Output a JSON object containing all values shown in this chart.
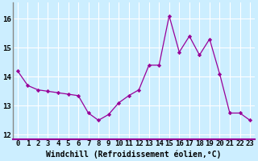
{
  "x": [
    0,
    1,
    2,
    3,
    4,
    5,
    6,
    7,
    8,
    9,
    10,
    11,
    12,
    13,
    14,
    15,
    16,
    17,
    18,
    19,
    20,
    21,
    22,
    23
  ],
  "y": [
    14.2,
    13.7,
    13.55,
    13.5,
    13.45,
    13.4,
    13.35,
    12.75,
    12.5,
    12.7,
    13.1,
    13.35,
    13.55,
    14.4,
    14.4,
    16.1,
    14.85,
    15.4,
    14.75,
    15.3,
    14.1,
    12.75,
    12.75,
    12.5
  ],
  "line_color": "#990099",
  "marker": "D",
  "marker_size": 2.2,
  "bg_color": "#cceeff",
  "grid_color": "#ffffff",
  "xlabel": "Windchill (Refroidissement éolien,°C)",
  "xlabel_fontsize": 7.0,
  "xtick_labels": [
    "0",
    "1",
    "2",
    "3",
    "4",
    "5",
    "6",
    "7",
    "8",
    "9",
    "10",
    "11",
    "12",
    "13",
    "14",
    "15",
    "16",
    "17",
    "18",
    "19",
    "20",
    "21",
    "22",
    "23"
  ],
  "ytick_labels": [
    "12",
    "13",
    "14",
    "15",
    "16"
  ],
  "yticks": [
    12,
    13,
    14,
    15,
    16
  ],
  "ylim": [
    11.85,
    16.55
  ],
  "xlim": [
    -0.5,
    23.5
  ],
  "tick_fontsize": 6.5,
  "left_spine_color": "#888888",
  "bottom_spine_color": "#990099"
}
